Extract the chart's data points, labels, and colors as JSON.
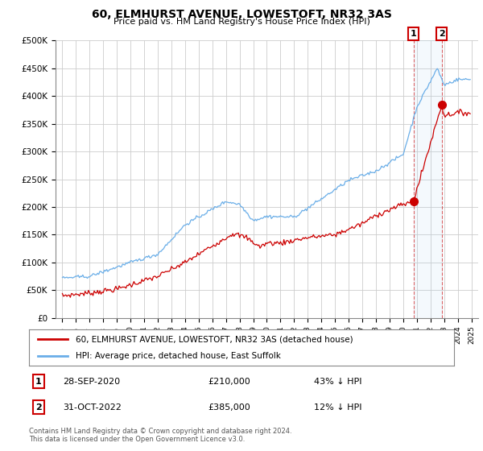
{
  "title": "60, ELMHURST AVENUE, LOWESTOFT, NR32 3AS",
  "subtitle": "Price paid vs. HM Land Registry's House Price Index (HPI)",
  "ylabel_ticks": [
    "£0",
    "£50K",
    "£100K",
    "£150K",
    "£200K",
    "£250K",
    "£300K",
    "£350K",
    "£400K",
    "£450K",
    "£500K"
  ],
  "ytick_values": [
    0,
    50000,
    100000,
    150000,
    200000,
    250000,
    300000,
    350000,
    400000,
    450000,
    500000
  ],
  "ylim": [
    0,
    500000
  ],
  "xlim": [
    1994.5,
    2025.5
  ],
  "hpi_color": "#6aaee8",
  "price_color": "#CC0000",
  "sale1_year": 2020.75,
  "sale1_price": 210000,
  "sale2_year": 2022.83,
  "sale2_price": 385000,
  "legend1_text": "60, ELMHURST AVENUE, LOWESTOFT, NR32 3AS (detached house)",
  "legend2_text": "HPI: Average price, detached house, East Suffolk",
  "footer": "Contains HM Land Registry data © Crown copyright and database right 2024.\nThis data is licensed under the Open Government Licence v3.0."
}
